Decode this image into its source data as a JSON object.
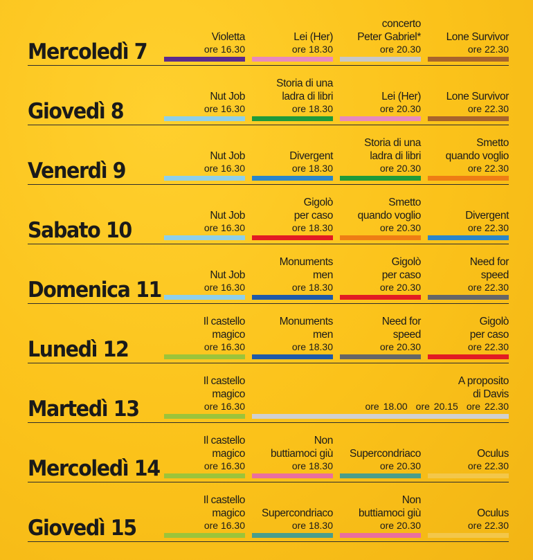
{
  "colors": {
    "background": "#fbc21a",
    "text": "#1a1a1a",
    "rule": "#2b2b2b"
  },
  "schedule": [
    {
      "day": "Mercoledì 7",
      "shows": [
        {
          "title": "Violetta",
          "time": "ore 16.30",
          "color": "#5b2b8c"
        },
        {
          "title": "Lei (Her)",
          "time": "ore 18.30",
          "color": "#e889bd"
        },
        {
          "title": "concerto\nPeter Gabriel*",
          "time": "ore 20.30",
          "color": "#c8c8c8"
        },
        {
          "title": "Lone Survivor",
          "time": "ore 22.30",
          "color": "#a8642b"
        }
      ]
    },
    {
      "day": "Giovedì 8",
      "shows": [
        {
          "title": "Nut Job",
          "time": "ore 16.30",
          "color": "#8fd0ea"
        },
        {
          "title": "Storia di una\nladra di libri",
          "time": "ore 18.30",
          "color": "#1f9a3a"
        },
        {
          "title": "Lei (Her)",
          "time": "ore 20.30",
          "color": "#e889bd"
        },
        {
          "title": "Lone Survivor",
          "time": "ore 22.30",
          "color": "#a8642b"
        }
      ]
    },
    {
      "day": "Venerdì 9",
      "shows": [
        {
          "title": "Nut Job",
          "time": "ore 16.30",
          "color": "#8fd0ea"
        },
        {
          "title": "Divergent",
          "time": "ore 18.30",
          "color": "#2b86c9"
        },
        {
          "title": "Storia di una\nladra di libri",
          "time": "ore 20.30",
          "color": "#1f9a3a"
        },
        {
          "title": "Smetto\nquando voglio",
          "time": "ore 22.30",
          "color": "#ee7d14"
        }
      ]
    },
    {
      "day": "Sabato 10",
      "shows": [
        {
          "title": "Nut Job",
          "time": "ore 16.30",
          "color": "#8fd0ea"
        },
        {
          "title": "Gigolò\nper caso",
          "time": "ore 18.30",
          "color": "#e21b23"
        },
        {
          "title": "Smetto\nquando voglio",
          "time": "ore 20.30",
          "color": "#ee7d14"
        },
        {
          "title": "Divergent",
          "time": "ore 22.30",
          "color": "#2b86c9"
        }
      ]
    },
    {
      "day": "Domenica 11",
      "shows": [
        {
          "title": "Nut Job",
          "time": "ore 16.30",
          "color": "#8fd0ea"
        },
        {
          "title": "Monuments\nmen",
          "time": "ore 18.30",
          "color": "#1f5aa8"
        },
        {
          "title": "Gigolò\nper caso",
          "time": "ore 20.30",
          "color": "#e21b23"
        },
        {
          "title": "Need for\nspeed",
          "time": "ore 22.30",
          "color": "#666666"
        }
      ]
    },
    {
      "day": "Lunedì 12",
      "shows": [
        {
          "title": "Il castello\nmagico",
          "time": "ore 16.30",
          "color": "#9cc43a"
        },
        {
          "title": "Monuments\nmen",
          "time": "ore 18.30",
          "color": "#1f5aa8"
        },
        {
          "title": "Need for\nspeed",
          "time": "ore 20.30",
          "color": "#666666"
        },
        {
          "title": "Gigolò\nper caso",
          "time": "ore 22.30",
          "color": "#e21b23"
        }
      ]
    },
    {
      "day": "Martedì 13",
      "shows": [
        {
          "title": "Il castello\nmagico",
          "time": "ore 16.30",
          "color": "#9cc43a"
        }
      ],
      "wide_show": {
        "title": "A proposito\ndi Davis",
        "times": [
          "ore 18.00",
          "ore 20.15",
          "ore 22.30"
        ],
        "color": "#d0d0d0"
      }
    },
    {
      "day": "Mercoledì 14",
      "shows": [
        {
          "title": "Il castello\nmagico",
          "time": "ore 16.30",
          "color": "#9cc43a"
        },
        {
          "title": "Non\nbuttiamoci giù",
          "time": "ore 18.30",
          "color": "#ea6f9d"
        },
        {
          "title": "Supercondriaco",
          "time": "ore 20.30",
          "color": "#4a9e8b"
        },
        {
          "title": "Oculus",
          "time": "ore 22.30",
          "color": "#f3c74a"
        }
      ]
    },
    {
      "day": "Giovedì 15",
      "shows": [
        {
          "title": "Il castello\nmagico",
          "time": "ore 16.30",
          "color": "#9cc43a"
        },
        {
          "title": "Supercondriaco",
          "time": "ore 18.30",
          "color": "#4a9e8b"
        },
        {
          "title": "Non\nbuttiamoci giù",
          "time": "ore 20.30",
          "color": "#ea6f9d"
        },
        {
          "title": "Oculus",
          "time": "ore 22.30",
          "color": "#f3c74a"
        }
      ]
    }
  ]
}
